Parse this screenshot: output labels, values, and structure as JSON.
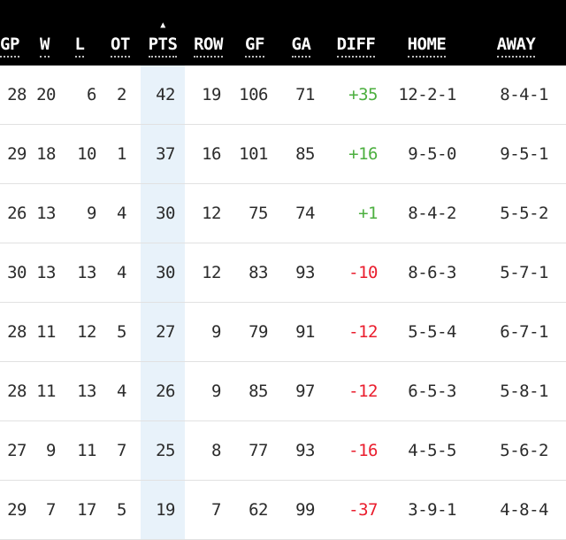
{
  "theme": {
    "header_bg": "#000000",
    "header_text": "#ffffff",
    "pts_highlight": "#e8f2fa",
    "positive_diff": "#4caf3f",
    "negative_diff": "#ea1d2d",
    "row_divider": "#e1e1e1",
    "cell_text": "#2b2b2b"
  },
  "table": {
    "sort_indicator": "▲",
    "sorted_column": "pts",
    "columns": [
      {
        "key": "gp",
        "label": "GP"
      },
      {
        "key": "w",
        "label": "W"
      },
      {
        "key": "l",
        "label": "L"
      },
      {
        "key": "ot",
        "label": "OT"
      },
      {
        "key": "pts",
        "label": "PTS",
        "sorted": true
      },
      {
        "key": "row",
        "label": "ROW"
      },
      {
        "key": "gf",
        "label": "GF"
      },
      {
        "key": "ga",
        "label": "GA"
      },
      {
        "key": "diff",
        "label": "DIFF"
      },
      {
        "key": "home",
        "label": "HOME"
      },
      {
        "key": "away",
        "label": "AWAY"
      }
    ],
    "rows": [
      {
        "gp": "28",
        "w": "20",
        "l": "6",
        "ot": "2",
        "pts": "42",
        "row": "19",
        "gf": "106",
        "ga": "71",
        "diff": "+35",
        "home": "12-2-1",
        "away": "8-4-1"
      },
      {
        "gp": "29",
        "w": "18",
        "l": "10",
        "ot": "1",
        "pts": "37",
        "row": "16",
        "gf": "101",
        "ga": "85",
        "diff": "+16",
        "home": "9-5-0",
        "away": "9-5-1"
      },
      {
        "gp": "26",
        "w": "13",
        "l": "9",
        "ot": "4",
        "pts": "30",
        "row": "12",
        "gf": "75",
        "ga": "74",
        "diff": "+1",
        "home": "8-4-2",
        "away": "5-5-2"
      },
      {
        "gp": "30",
        "w": "13",
        "l": "13",
        "ot": "4",
        "pts": "30",
        "row": "12",
        "gf": "83",
        "ga": "93",
        "diff": "-10",
        "home": "8-6-3",
        "away": "5-7-1"
      },
      {
        "gp": "28",
        "w": "11",
        "l": "12",
        "ot": "5",
        "pts": "27",
        "row": "9",
        "gf": "79",
        "ga": "91",
        "diff": "-12",
        "home": "5-5-4",
        "away": "6-7-1"
      },
      {
        "gp": "28",
        "w": "11",
        "l": "13",
        "ot": "4",
        "pts": "26",
        "row": "9",
        "gf": "85",
        "ga": "97",
        "diff": "-12",
        "home": "6-5-3",
        "away": "5-8-1"
      },
      {
        "gp": "27",
        "w": "9",
        "l": "11",
        "ot": "7",
        "pts": "25",
        "row": "8",
        "gf": "77",
        "ga": "93",
        "diff": "-16",
        "home": "4-5-5",
        "away": "5-6-2"
      },
      {
        "gp": "29",
        "w": "7",
        "l": "17",
        "ot": "5",
        "pts": "19",
        "row": "7",
        "gf": "62",
        "ga": "99",
        "diff": "-37",
        "home": "3-9-1",
        "away": "4-8-4"
      }
    ]
  }
}
